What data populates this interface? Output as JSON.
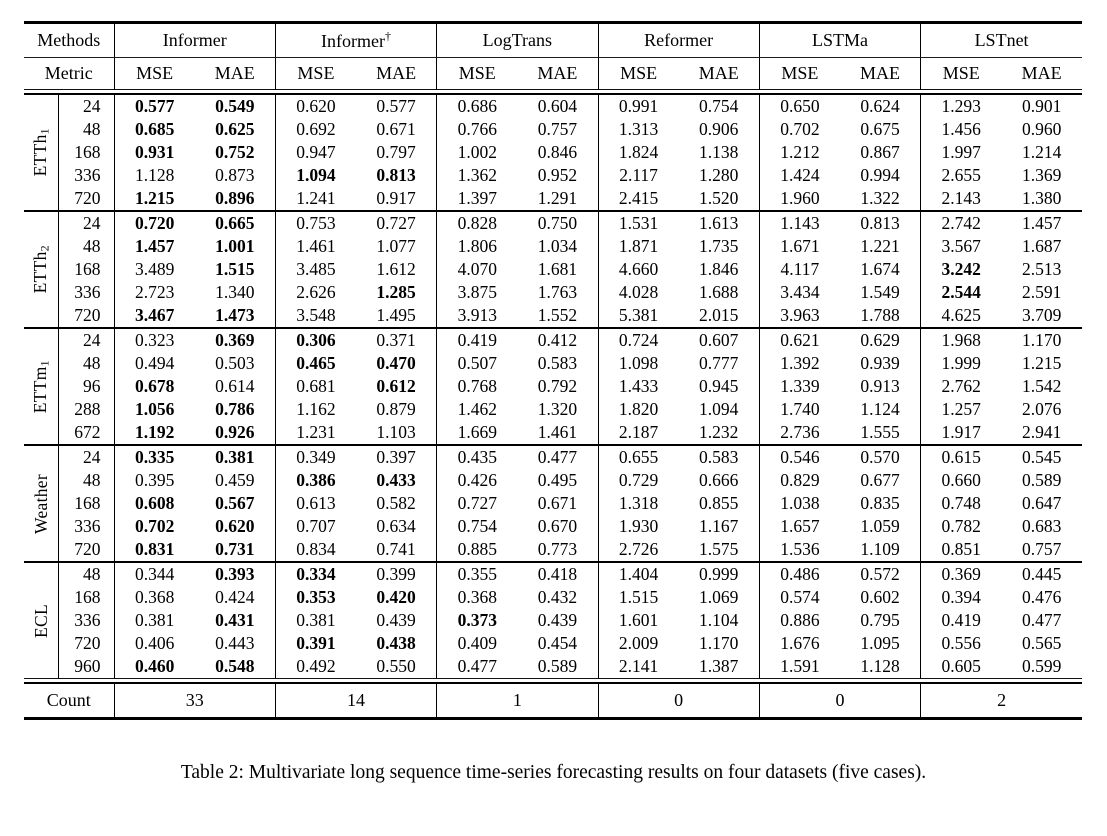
{
  "caption": "Table 2: Multivariate long sequence time-series forecasting results on four datasets (five cases).",
  "table": {
    "header": {
      "methods_label": "Methods",
      "metric_label": "Metric",
      "metrics": [
        "MSE",
        "MAE"
      ],
      "methods": [
        {
          "name": "Informer",
          "sup": ""
        },
        {
          "name": "Informer",
          "sup": "†"
        },
        {
          "name": "LogTrans",
          "sup": ""
        },
        {
          "name": "Reformer",
          "sup": ""
        },
        {
          "name": "LSTMa",
          "sup": ""
        },
        {
          "name": "LSTnet",
          "sup": ""
        }
      ]
    },
    "groups": [
      {
        "dataset": "ETTh",
        "sub": "1",
        "rows": [
          {
            "horizon": "24",
            "values": [
              "0.577",
              "0.549",
              "0.620",
              "0.577",
              "0.686",
              "0.604",
              "0.991",
              "0.754",
              "0.650",
              "0.624",
              "1.293",
              "0.901"
            ],
            "bold": [
              0,
              1
            ]
          },
          {
            "horizon": "48",
            "values": [
              "0.685",
              "0.625",
              "0.692",
              "0.671",
              "0.766",
              "0.757",
              "1.313",
              "0.906",
              "0.702",
              "0.675",
              "1.456",
              "0.960"
            ],
            "bold": [
              0,
              1
            ]
          },
          {
            "horizon": "168",
            "values": [
              "0.931",
              "0.752",
              "0.947",
              "0.797",
              "1.002",
              "0.846",
              "1.824",
              "1.138",
              "1.212",
              "0.867",
              "1.997",
              "1.214"
            ],
            "bold": [
              0,
              1
            ]
          },
          {
            "horizon": "336",
            "values": [
              "1.128",
              "0.873",
              "1.094",
              "0.813",
              "1.362",
              "0.952",
              "2.117",
              "1.280",
              "1.424",
              "0.994",
              "2.655",
              "1.369"
            ],
            "bold": [
              2,
              3
            ]
          },
          {
            "horizon": "720",
            "values": [
              "1.215",
              "0.896",
              "1.241",
              "0.917",
              "1.397",
              "1.291",
              "2.415",
              "1.520",
              "1.960",
              "1.322",
              "2.143",
              "1.380"
            ],
            "bold": [
              0,
              1
            ]
          }
        ]
      },
      {
        "dataset": "ETTh",
        "sub": "2",
        "rows": [
          {
            "horizon": "24",
            "values": [
              "0.720",
              "0.665",
              "0.753",
              "0.727",
              "0.828",
              "0.750",
              "1.531",
              "1.613",
              "1.143",
              "0.813",
              "2.742",
              "1.457"
            ],
            "bold": [
              0,
              1
            ]
          },
          {
            "horizon": "48",
            "values": [
              "1.457",
              "1.001",
              "1.461",
              "1.077",
              "1.806",
              "1.034",
              "1.871",
              "1.735",
              "1.671",
              "1.221",
              "3.567",
              "1.687"
            ],
            "bold": [
              0,
              1
            ]
          },
          {
            "horizon": "168",
            "values": [
              "3.489",
              "1.515",
              "3.485",
              "1.612",
              "4.070",
              "1.681",
              "4.660",
              "1.846",
              "4.117",
              "1.674",
              "3.242",
              "2.513"
            ],
            "bold": [
              1,
              10
            ]
          },
          {
            "horizon": "336",
            "values": [
              "2.723",
              "1.340",
              "2.626",
              "1.285",
              "3.875",
              "1.763",
              "4.028",
              "1.688",
              "3.434",
              "1.549",
              "2.544",
              "2.591"
            ],
            "bold": [
              3,
              10
            ]
          },
          {
            "horizon": "720",
            "values": [
              "3.467",
              "1.473",
              "3.548",
              "1.495",
              "3.913",
              "1.552",
              "5.381",
              "2.015",
              "3.963",
              "1.788",
              "4.625",
              "3.709"
            ],
            "bold": [
              0,
              1
            ]
          }
        ]
      },
      {
        "dataset": "ETTm",
        "sub": "1",
        "rows": [
          {
            "horizon": "24",
            "values": [
              "0.323",
              "0.369",
              "0.306",
              "0.371",
              "0.419",
              "0.412",
              "0.724",
              "0.607",
              "0.621",
              "0.629",
              "1.968",
              "1.170"
            ],
            "bold": [
              1,
              2
            ]
          },
          {
            "horizon": "48",
            "values": [
              "0.494",
              "0.503",
              "0.465",
              "0.470",
              "0.507",
              "0.583",
              "1.098",
              "0.777",
              "1.392",
              "0.939",
              "1.999",
              "1.215"
            ],
            "bold": [
              2,
              3
            ]
          },
          {
            "horizon": "96",
            "values": [
              "0.678",
              "0.614",
              "0.681",
              "0.612",
              "0.768",
              "0.792",
              "1.433",
              "0.945",
              "1.339",
              "0.913",
              "2.762",
              "1.542"
            ],
            "bold": [
              0,
              3
            ]
          },
          {
            "horizon": "288",
            "values": [
              "1.056",
              "0.786",
              "1.162",
              "0.879",
              "1.462",
              "1.320",
              "1.820",
              "1.094",
              "1.740",
              "1.124",
              "1.257",
              "2.076"
            ],
            "bold": [
              0,
              1
            ]
          },
          {
            "horizon": "672",
            "values": [
              "1.192",
              "0.926",
              "1.231",
              "1.103",
              "1.669",
              "1.461",
              "2.187",
              "1.232",
              "2.736",
              "1.555",
              "1.917",
              "2.941"
            ],
            "bold": [
              0,
              1
            ]
          }
        ]
      },
      {
        "dataset": "Weather",
        "sub": "",
        "rows": [
          {
            "horizon": "24",
            "values": [
              "0.335",
              "0.381",
              "0.349",
              "0.397",
              "0.435",
              "0.477",
              "0.655",
              "0.583",
              "0.546",
              "0.570",
              "0.615",
              "0.545"
            ],
            "bold": [
              0,
              1
            ]
          },
          {
            "horizon": "48",
            "values": [
              "0.395",
              "0.459",
              "0.386",
              "0.433",
              "0.426",
              "0.495",
              "0.729",
              "0.666",
              "0.829",
              "0.677",
              "0.660",
              "0.589"
            ],
            "bold": [
              2,
              3
            ]
          },
          {
            "horizon": "168",
            "values": [
              "0.608",
              "0.567",
              "0.613",
              "0.582",
              "0.727",
              "0.671",
              "1.318",
              "0.855",
              "1.038",
              "0.835",
              "0.748",
              "0.647"
            ],
            "bold": [
              0,
              1
            ]
          },
          {
            "horizon": "336",
            "values": [
              "0.702",
              "0.620",
              "0.707",
              "0.634",
              "0.754",
              "0.670",
              "1.930",
              "1.167",
              "1.657",
              "1.059",
              "0.782",
              "0.683"
            ],
            "bold": [
              0,
              1
            ]
          },
          {
            "horizon": "720",
            "values": [
              "0.831",
              "0.731",
              "0.834",
              "0.741",
              "0.885",
              "0.773",
              "2.726",
              "1.575",
              "1.536",
              "1.109",
              "0.851",
              "0.757"
            ],
            "bold": [
              0,
              1
            ]
          }
        ]
      },
      {
        "dataset": "ECL",
        "sub": "",
        "rows": [
          {
            "horizon": "48",
            "values": [
              "0.344",
              "0.393",
              "0.334",
              "0.399",
              "0.355",
              "0.418",
              "1.404",
              "0.999",
              "0.486",
              "0.572",
              "0.369",
              "0.445"
            ],
            "bold": [
              1,
              2
            ]
          },
          {
            "horizon": "168",
            "values": [
              "0.368",
              "0.424",
              "0.353",
              "0.420",
              "0.368",
              "0.432",
              "1.515",
              "1.069",
              "0.574",
              "0.602",
              "0.394",
              "0.476"
            ],
            "bold": [
              2,
              3
            ]
          },
          {
            "horizon": "336",
            "values": [
              "0.381",
              "0.431",
              "0.381",
              "0.439",
              "0.373",
              "0.439",
              "1.601",
              "1.104",
              "0.886",
              "0.795",
              "0.419",
              "0.477"
            ],
            "bold": [
              1,
              4
            ]
          },
          {
            "horizon": "720",
            "values": [
              "0.406",
              "0.443",
              "0.391",
              "0.438",
              "0.409",
              "0.454",
              "2.009",
              "1.170",
              "1.676",
              "1.095",
              "0.556",
              "0.565"
            ],
            "bold": [
              2,
              3
            ]
          },
          {
            "horizon": "960",
            "values": [
              "0.460",
              "0.548",
              "0.492",
              "0.550",
              "0.477",
              "0.589",
              "2.141",
              "1.387",
              "1.591",
              "1.128",
              "0.605",
              "0.599"
            ],
            "bold": [
              0,
              1
            ]
          }
        ]
      }
    ],
    "count": {
      "label": "Count",
      "values": [
        "33",
        "14",
        "1",
        "0",
        "0",
        "2"
      ]
    }
  }
}
